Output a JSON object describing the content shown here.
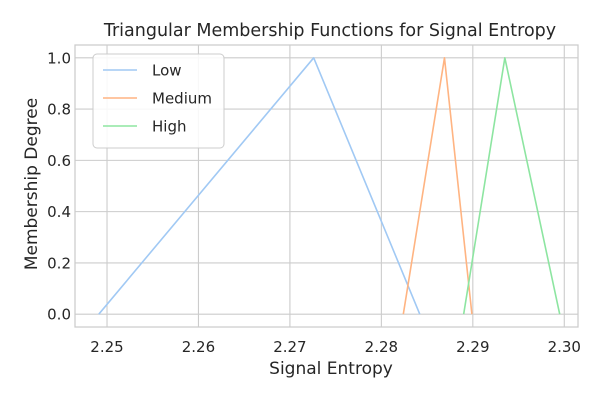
{
  "chart_data": {
    "type": "line",
    "title": "Triangular Membership Functions for Signal Entropy",
    "xlabel": "Signal Entropy",
    "ylabel": "Membership Degree",
    "xlim": [
      2.2465,
      2.3015
    ],
    "ylim": [
      -0.05,
      1.05
    ],
    "xticks": [
      2.25,
      2.26,
      2.27,
      2.28,
      2.29,
      2.3
    ],
    "xtick_labels": [
      "2.25",
      "2.26",
      "2.27",
      "2.28",
      "2.29",
      "2.30"
    ],
    "yticks": [
      0.0,
      0.2,
      0.4,
      0.6,
      0.8,
      1.0
    ],
    "ytick_labels": [
      "0.0",
      "0.2",
      "0.4",
      "0.6",
      "0.8",
      "1.0"
    ],
    "grid": true,
    "legend_position": "top-left",
    "series": [
      {
        "name": "Low",
        "color": "#a1c9f4",
        "x": [
          2.2491,
          2.2726,
          2.2842
        ],
        "y": [
          0,
          1,
          0
        ]
      },
      {
        "name": "Medium",
        "color": "#ffb482",
        "x": [
          2.2824,
          2.2869,
          2.2899
        ],
        "y": [
          0,
          1,
          0
        ]
      },
      {
        "name": "High",
        "color": "#8de5a1",
        "x": [
          2.289,
          2.2935,
          2.2995
        ],
        "y": [
          0,
          1,
          0
        ]
      }
    ]
  }
}
